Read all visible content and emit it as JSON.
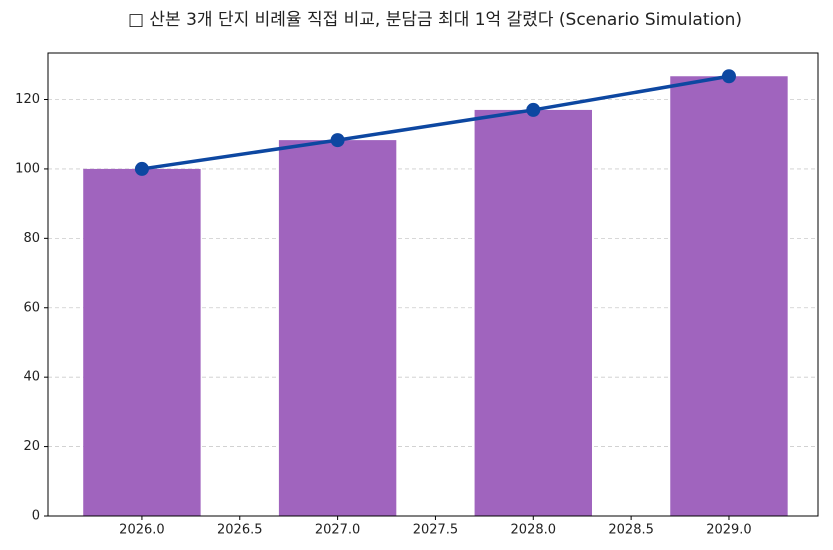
{
  "chart_data": {
    "type": "combo",
    "title": "□ 산본 3개 단지 비례율 직접 비교, 분담금 최대 1억 갈렸다 (Scenario Simulation)",
    "x": [
      2026,
      2027,
      2028,
      2029
    ],
    "series": [
      {
        "type": "bar",
        "color": "#a064be",
        "values": [
          100,
          108.3,
          117,
          126.7
        ],
        "width": 0.6
      },
      {
        "type": "line",
        "color": "#0d47a1",
        "values": [
          100,
          108.3,
          117,
          126.7
        ]
      }
    ],
    "xlim": [
      2025.52,
      2029.455
    ],
    "xticks": [
      {
        "value": 2026,
        "label": "2026.0"
      },
      {
        "value": 2026.5,
        "label": "2026.5"
      },
      {
        "value": 2027,
        "label": "2027.0"
      },
      {
        "value": 2027.5,
        "label": "2027.5"
      },
      {
        "value": 2028,
        "label": "2028.0"
      },
      {
        "value": 2028.5,
        "label": "2028.5"
      },
      {
        "value": 2029,
        "label": "2029.0"
      }
    ],
    "ylim": [
      0,
      133.4
    ],
    "yticks": [
      0,
      20,
      40,
      60,
      80,
      100,
      120
    ],
    "grid": true
  }
}
